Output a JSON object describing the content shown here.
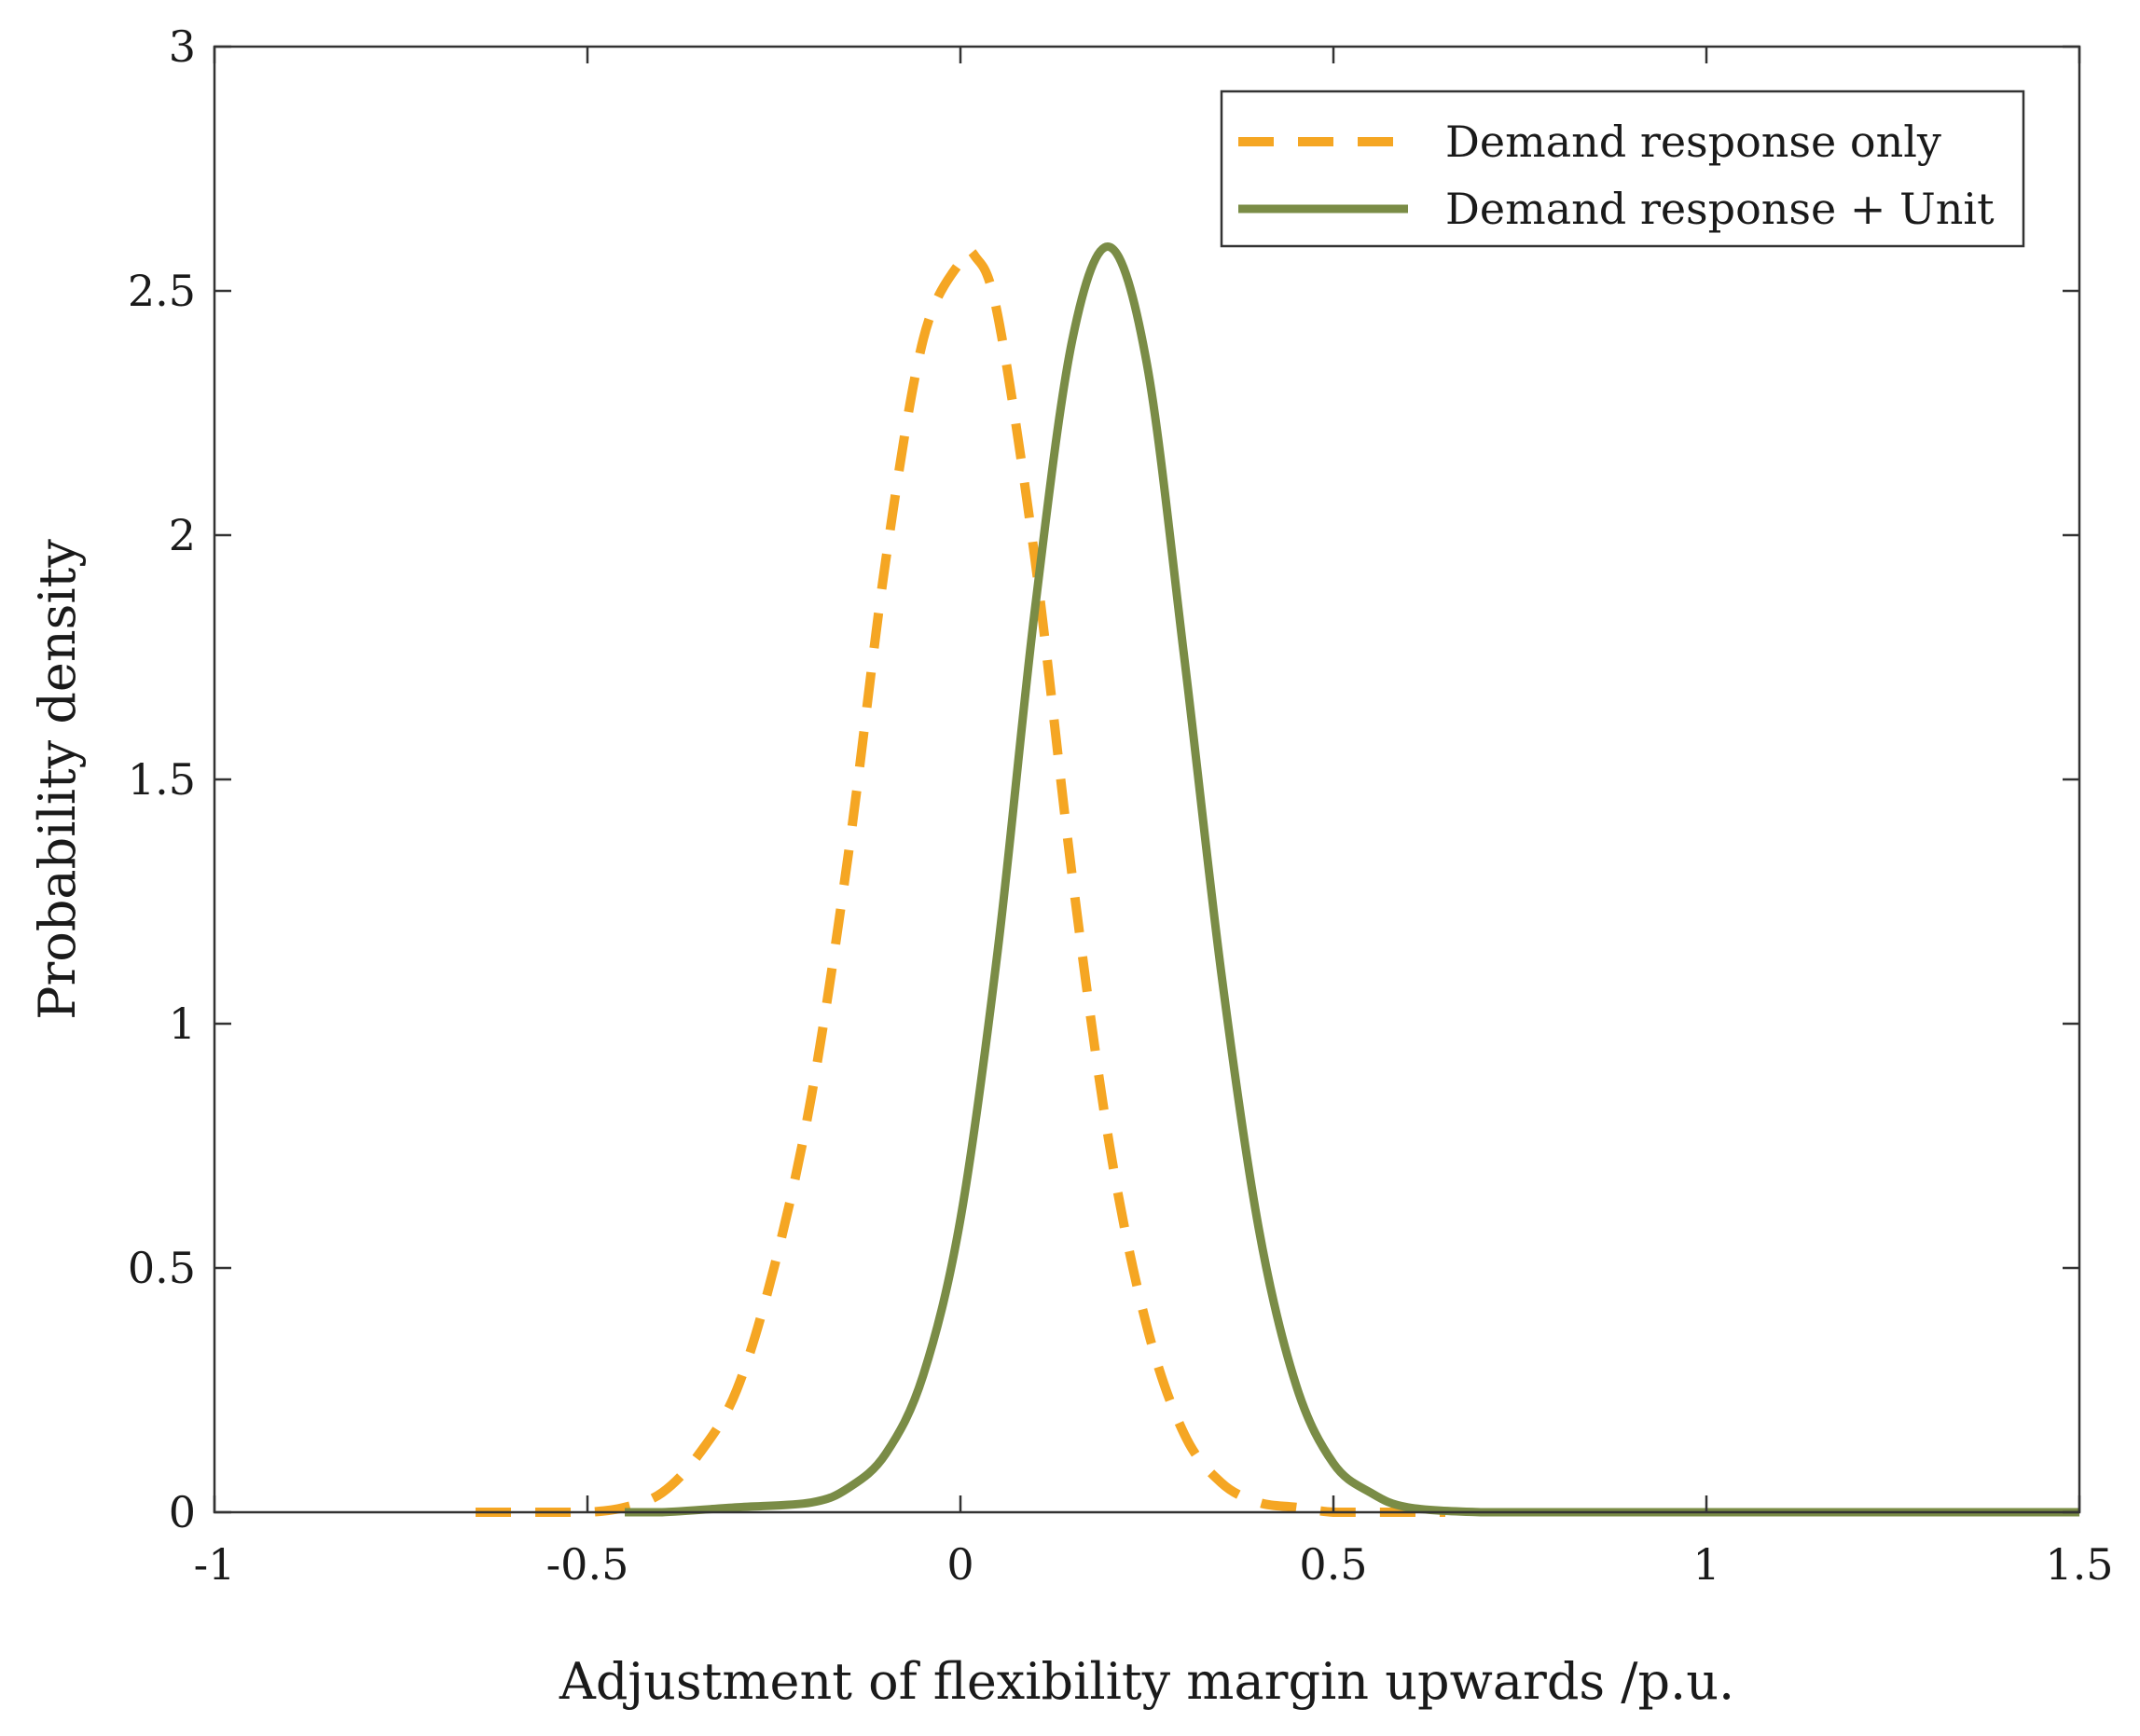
{
  "chart_data": {
    "type": "line",
    "title": "",
    "xlabel": "Adjustment of flexibility margin upwards /p.u.",
    "ylabel": "Probability density",
    "xlim": [
      -1,
      1.5
    ],
    "ylim": [
      0,
      3
    ],
    "xticks": [
      -1,
      -0.5,
      0,
      0.5,
      1,
      1.5
    ],
    "xtick_labels": [
      "-1",
      "-0.5",
      "0",
      "0.5",
      "1",
      "1.5"
    ],
    "yticks": [
      0,
      0.5,
      1,
      1.5,
      2,
      2.5,
      3
    ],
    "ytick_labels": [
      "0",
      "0.5",
      "1",
      "1.5",
      "2",
      "2.5",
      "3"
    ],
    "grid": false,
    "legend_position": "top-right",
    "series": [
      {
        "name": "Demand response only",
        "style": "dashed",
        "color": "#F5A623",
        "x": [
          -0.65,
          -0.55,
          -0.5,
          -0.45,
          -0.4,
          -0.35,
          -0.3,
          -0.25,
          -0.2,
          -0.15,
          -0.1,
          -0.05,
          0.0,
          0.02,
          0.05,
          0.1,
          0.15,
          0.2,
          0.25,
          0.3,
          0.35,
          0.4,
          0.45,
          0.5,
          0.55,
          0.65
        ],
        "y": [
          0.0,
          0.0,
          0.0,
          0.01,
          0.04,
          0.12,
          0.25,
          0.5,
          0.85,
          1.35,
          1.95,
          2.4,
          2.56,
          2.57,
          2.45,
          1.95,
          1.3,
          0.75,
          0.38,
          0.16,
          0.06,
          0.02,
          0.01,
          0.0,
          0.0,
          0.0
        ]
      },
      {
        "name": "Demand response + Unit",
        "style": "solid",
        "color": "#7A8C46",
        "x": [
          -0.45,
          -0.4,
          -0.3,
          -0.2,
          -0.15,
          -0.1,
          -0.05,
          0.0,
          0.05,
          0.1,
          0.15,
          0.2,
          0.25,
          0.3,
          0.35,
          0.4,
          0.45,
          0.5,
          0.55,
          0.6,
          0.7,
          0.8,
          1.0,
          1.2,
          1.5
        ],
        "y": [
          0.0,
          0.0,
          0.01,
          0.02,
          0.05,
          0.12,
          0.28,
          0.6,
          1.15,
          1.85,
          2.4,
          2.59,
          2.35,
          1.75,
          1.1,
          0.58,
          0.26,
          0.1,
          0.04,
          0.01,
          0.0,
          0.0,
          0.0,
          0.0,
          0.0
        ]
      }
    ]
  }
}
